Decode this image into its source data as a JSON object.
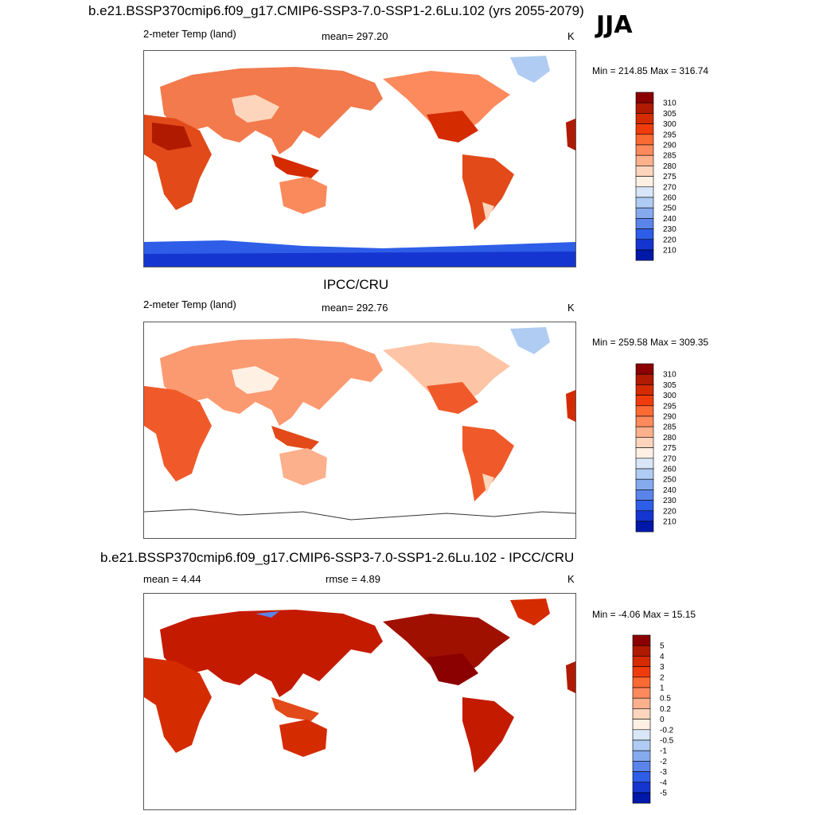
{
  "header": {
    "title": "b.e21.BSSP370cmip6.f09_g17.CMIP6-SSP3-7.0-SSP1-2.6Lu.102 (yrs 2055-2079)",
    "season": "JJA"
  },
  "panels": [
    {
      "id": "model",
      "heading": "",
      "left_label": "2-meter Temp (land)",
      "center_label": "mean= 297.20",
      "unit": "K",
      "minmax": "Min = 214.85 Max = 316.74",
      "colorbar": {
        "labels": [
          "310",
          "305",
          "300",
          "295",
          "290",
          "285",
          "280",
          "275",
          "270",
          "260",
          "250",
          "240",
          "230",
          "220",
          "210"
        ],
        "colors": [
          "#8b0000",
          "#b01a00",
          "#d52b00",
          "#f03c0c",
          "#fa6a33",
          "#fc8a5c",
          "#fdb08c",
          "#fdd5bc",
          "#fff0e4",
          "#d8e6f8",
          "#b0ccf2",
          "#86aaee",
          "#5a84ea",
          "#2e5de8",
          "#1535d0",
          "#0018a8"
        ]
      }
    },
    {
      "id": "obs",
      "heading": "IPCC/CRU",
      "left_label": "2-meter Temp (land)",
      "center_label": "mean= 292.76",
      "unit": "K",
      "minmax": "Min = 259.58 Max = 309.35",
      "colorbar": {
        "labels": [
          "310",
          "305",
          "300",
          "295",
          "290",
          "285",
          "280",
          "275",
          "270",
          "260",
          "250",
          "240",
          "230",
          "220",
          "210"
        ],
        "colors": [
          "#8b0000",
          "#b01a00",
          "#d52b00",
          "#f03c0c",
          "#fa6a33",
          "#fc8a5c",
          "#fdb08c",
          "#fdd5bc",
          "#fff0e4",
          "#d8e6f8",
          "#b0ccf2",
          "#86aaee",
          "#5a84ea",
          "#2e5de8",
          "#1535d0",
          "#0018a8"
        ]
      }
    },
    {
      "id": "diff",
      "heading": "b.e21.BSSP370cmip6.f09_g17.CMIP6-SSP3-7.0-SSP1-2.6Lu.102 - IPCC/CRU",
      "left_label": "mean =   4.44",
      "center_label": "rmse =   4.89",
      "unit": "K",
      "minmax": "Min =  -4.06 Max =  15.15",
      "colorbar": {
        "labels": [
          "5",
          "4",
          "3",
          "2",
          "1",
          "0.5",
          "0.2",
          "0",
          "-0.2",
          "-0.5",
          "-1",
          "-2",
          "-3",
          "-4",
          "-5"
        ],
        "colors": [
          "#8b0000",
          "#b01a00",
          "#d52b00",
          "#f03c0c",
          "#fa6a33",
          "#fc8a5c",
          "#fdb08c",
          "#fdd5bc",
          "#fff0e4",
          "#d8e6f8",
          "#b0ccf2",
          "#86aaee",
          "#5a84ea",
          "#2e5de8",
          "#1535d0",
          "#0018a8"
        ]
      }
    }
  ]
}
